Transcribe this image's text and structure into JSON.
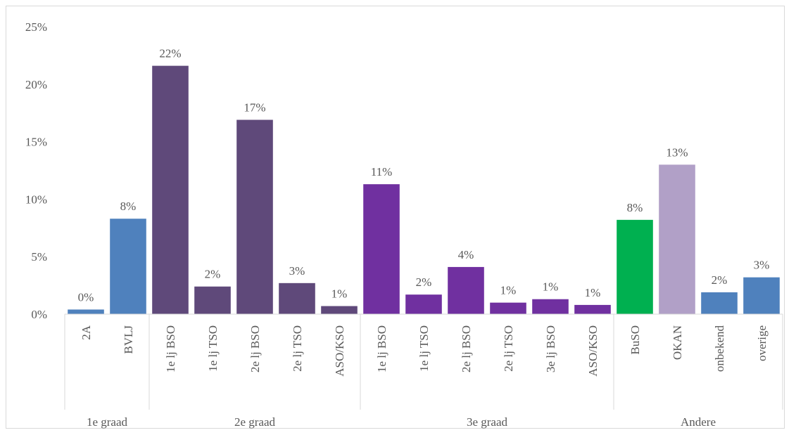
{
  "chart_data": {
    "type": "bar",
    "ylim": [
      0,
      25
    ],
    "y_ticks": [
      "0%",
      "5%",
      "10%",
      "15%",
      "20%",
      "25%"
    ],
    "y_tick_values": [
      0,
      5,
      10,
      15,
      20,
      25
    ],
    "grid": false,
    "legend": false,
    "bars": [
      {
        "category": "2A",
        "value": 0.4,
        "label": "0%",
        "color": "#4f81bd"
      },
      {
        "category": "BVLJ",
        "value": 8.3,
        "label": "8%",
        "color": "#4f81bd"
      },
      {
        "category": "1e lj BSO",
        "value": 21.6,
        "label": "22%",
        "color": "#5f497a"
      },
      {
        "category": "1e lj TSO",
        "value": 2.4,
        "label": "2%",
        "color": "#5f497a"
      },
      {
        "category": "2e lj BSO",
        "value": 16.9,
        "label": "17%",
        "color": "#5f497a"
      },
      {
        "category": "2e lj TSO",
        "value": 2.7,
        "label": "3%",
        "color": "#5f497a"
      },
      {
        "category": "ASO/KSO",
        "value": 0.7,
        "label": "1%",
        "color": "#5f497a"
      },
      {
        "category": "1e lj BSO",
        "value": 11.3,
        "label": "11%",
        "color": "#7030a0"
      },
      {
        "category": "1e lj TSO",
        "value": 1.7,
        "label": "2%",
        "color": "#7030a0"
      },
      {
        "category": "2e lj BSO",
        "value": 4.1,
        "label": "4%",
        "color": "#7030a0"
      },
      {
        "category": "2e lj TSO",
        "value": 1.0,
        "label": "1%",
        "color": "#7030a0"
      },
      {
        "category": "3e lj BSO",
        "value": 1.3,
        "label": "1%",
        "color": "#7030a0"
      },
      {
        "category": "ASO/KSO",
        "value": 0.8,
        "label": "1%",
        "color": "#7030a0"
      },
      {
        "category": "BuSO",
        "value": 8.2,
        "label": "8%",
        "color": "#00b050"
      },
      {
        "category": "OKAN",
        "value": 13.0,
        "label": "13%",
        "color": "#b1a0c7"
      },
      {
        "category": "onbekend",
        "value": 1.9,
        "label": "2%",
        "color": "#4f81bd"
      },
      {
        "category": "overige",
        "value": 3.2,
        "label": "3%",
        "color": "#4f81bd"
      }
    ],
    "groups": [
      {
        "label": "1e graad",
        "count": 2
      },
      {
        "label": "2e graad",
        "count": 5
      },
      {
        "label": "3e graad",
        "count": 6
      },
      {
        "label": "Andere",
        "count": 4
      }
    ]
  }
}
